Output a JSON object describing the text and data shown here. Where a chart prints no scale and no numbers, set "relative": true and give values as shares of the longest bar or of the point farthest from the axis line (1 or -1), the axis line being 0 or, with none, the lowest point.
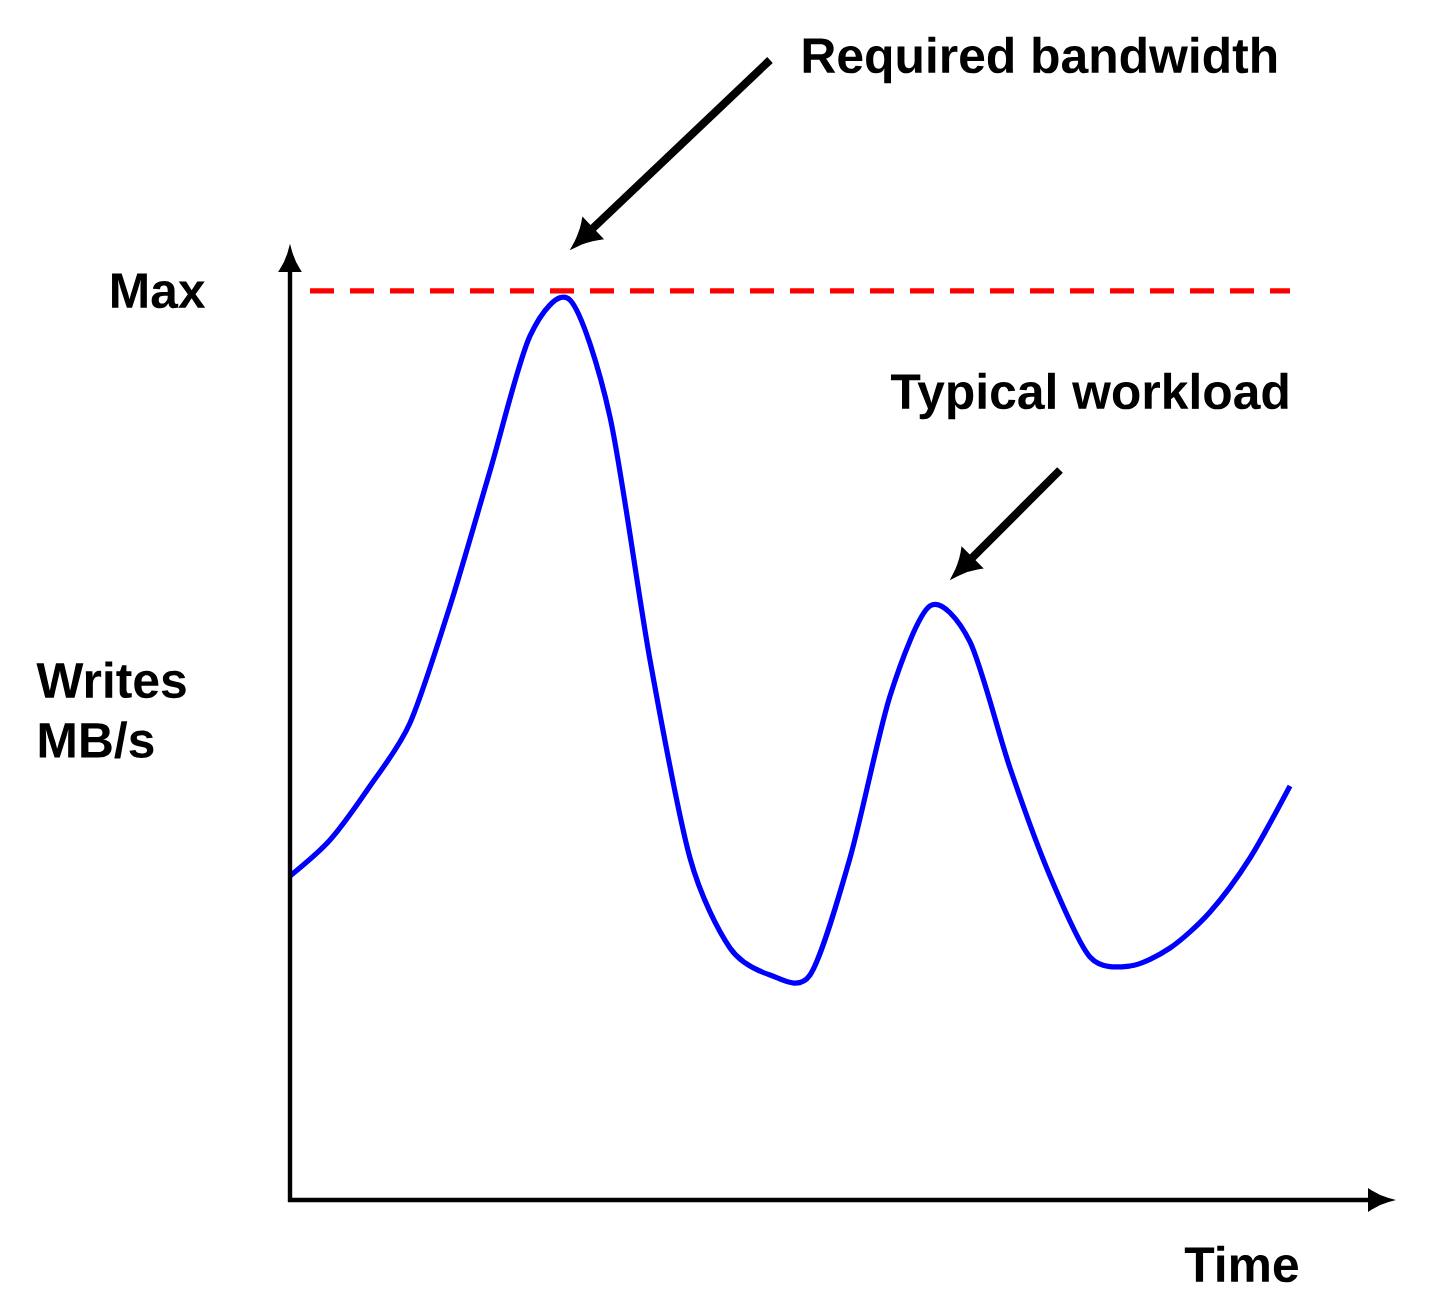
{
  "chart_data": {
    "type": "line",
    "relative": true,
    "tick_labels": false,
    "marker": "none",
    "line_style": "solid",
    "xlabel": "Time",
    "ylabel": "Writes MB/s",
    "categories": [
      null,
      null,
      null,
      null,
      null,
      null,
      null,
      null,
      null,
      null,
      null,
      null,
      null,
      null,
      null,
      null,
      null,
      null,
      null,
      null,
      null,
      null,
      null,
      null,
      null,
      null
    ],
    "series": [
      {
        "color": "#0000ff",
        "values": [
          0.36,
          0.4,
          0.46,
          0.53,
          0.66,
          0.81,
          0.96,
          1,
          0.87,
          0.6,
          0.38,
          0.28,
          0.25,
          0.25,
          0.38,
          0.56,
          0.66,
          0.62,
          0.48,
          0.36,
          0.27,
          0.26,
          0.28,
          0.32,
          0.38,
          0.46
        ]
      }
    ],
    "ref_lines": [
      {
        "axis": "y",
        "value": 1.01,
        "label": "Max",
        "color": "#ff0000",
        "line_style": "dashed"
      }
    ],
    "annotations": [
      "Required bandwidth",
      "Typical workload"
    ]
  }
}
